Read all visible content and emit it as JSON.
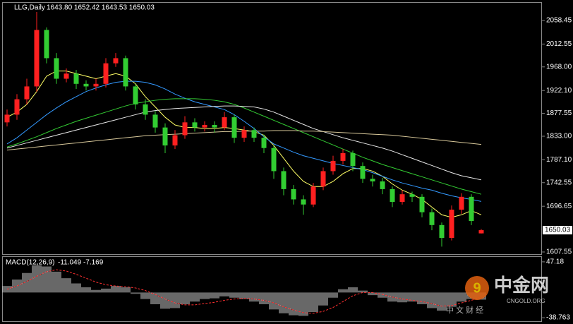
{
  "chart_data": [
    {
      "type": "candlestick",
      "title": "LLG,Daily",
      "subtitle": "1643.80 1652.42 1643.53 1650.03",
      "up_color": "#ff2020",
      "down_color": "#32cd32",
      "open": [
        1860,
        1875,
        1905,
        1930,
        2040,
        1985,
        1945,
        1955,
        1935,
        1930,
        1935,
        1975,
        1985,
        1930,
        1895,
        1875,
        1850,
        1815,
        1835,
        1860,
        1850,
        1855,
        1850,
        1870,
        1830,
        1845,
        1830,
        1810,
        1765,
        1730,
        1710,
        1700,
        1735,
        1765,
        1785,
        1800,
        1775,
        1750,
        1745,
        1730,
        1705,
        1720,
        1715,
        1685,
        1660,
        1635,
        1690,
        1715,
        1643.8
      ],
      "high": [
        1885,
        1915,
        1945,
        2075,
        2045,
        1995,
        1965,
        1962,
        1942,
        1945,
        1985,
        1995,
        1990,
        1935,
        1905,
        1882,
        1858,
        1845,
        1872,
        1868,
        1862,
        1862,
        1880,
        1875,
        1852,
        1850,
        1836,
        1815,
        1772,
        1738,
        1718,
        1742,
        1772,
        1795,
        1808,
        1805,
        1782,
        1758,
        1752,
        1735,
        1728,
        1725,
        1720,
        1692,
        1665,
        1698,
        1722,
        1720,
        1652.42
      ],
      "low": [
        1852,
        1865,
        1895,
        1920,
        1975,
        1935,
        1938,
        1925,
        1922,
        1922,
        1928,
        1968,
        1922,
        1885,
        1865,
        1840,
        1800,
        1808,
        1828,
        1842,
        1842,
        1840,
        1845,
        1820,
        1822,
        1822,
        1800,
        1750,
        1718,
        1700,
        1680,
        1695,
        1728,
        1758,
        1778,
        1765,
        1742,
        1735,
        1720,
        1695,
        1700,
        1705,
        1675,
        1650,
        1618,
        1630,
        1682,
        1660,
        1643.53
      ],
      "close": [
        1875,
        1905,
        1930,
        2040,
        1985,
        1945,
        1955,
        1935,
        1930,
        1935,
        1975,
        1985,
        1930,
        1895,
        1875,
        1850,
        1815,
        1835,
        1860,
        1850,
        1855,
        1850,
        1870,
        1830,
        1845,
        1830,
        1810,
        1765,
        1730,
        1710,
        1700,
        1735,
        1765,
        1785,
        1800,
        1775,
        1750,
        1745,
        1730,
        1705,
        1720,
        1715,
        1685,
        1660,
        1635,
        1690,
        1715,
        1668,
        1650.03
      ],
      "series": [
        {
          "color": "#ffff66",
          "values": [
            1870,
            1880,
            1895,
            1920,
            1950,
            1960,
            1960,
            1955,
            1950,
            1945,
            1950,
            1955,
            1950,
            1935,
            1910,
            1890,
            1870,
            1855,
            1850,
            1850,
            1848,
            1848,
            1850,
            1848,
            1845,
            1842,
            1835,
            1815,
            1790,
            1765,
            1745,
            1735,
            1735,
            1745,
            1760,
            1770,
            1770,
            1765,
            1755,
            1740,
            1728,
            1720,
            1710,
            1695,
            1680,
            1675,
            1680,
            1688,
            1680
          ]
        },
        {
          "color": "#3399ff",
          "values": [
            1818,
            1830,
            1845,
            1860,
            1875,
            1888,
            1900,
            1910,
            1920,
            1927,
            1933,
            1938,
            1940,
            1940,
            1938,
            1933,
            1925,
            1915,
            1907,
            1900,
            1895,
            1890,
            1885,
            1875,
            1862,
            1848,
            1832,
            1818,
            1810,
            1802,
            1795,
            1790,
            1785,
            1780,
            1776,
            1772,
            1768,
            1762,
            1755,
            1748,
            1742,
            1737,
            1732,
            1728,
            1722,
            1717,
            1713,
            1710,
            1706
          ]
        },
        {
          "color": "#33cc33",
          "values": [
            1812,
            1818,
            1825,
            1832,
            1840,
            1848,
            1855,
            1862,
            1868,
            1874,
            1880,
            1886,
            1892,
            1897,
            1900,
            1903,
            1905,
            1906,
            1906,
            1906,
            1905,
            1903,
            1900,
            1895,
            1888,
            1880,
            1872,
            1864,
            1856,
            1848,
            1840,
            1832,
            1824,
            1816,
            1808,
            1800,
            1792,
            1785,
            1778,
            1772,
            1766,
            1760,
            1754,
            1748,
            1742,
            1736,
            1730,
            1725,
            1720
          ]
        },
        {
          "color": "#e8e8e8",
          "values": [
            1810,
            1815,
            1820,
            1825,
            1830,
            1835,
            1840,
            1845,
            1850,
            1855,
            1860,
            1865,
            1870,
            1875,
            1880,
            1883,
            1885,
            1887,
            1888,
            1889,
            1890,
            1891,
            1892,
            1892,
            1891,
            1890,
            1886,
            1880,
            1872,
            1864,
            1856,
            1848,
            1842,
            1836,
            1830,
            1825,
            1820,
            1815,
            1810,
            1804,
            1797,
            1790,
            1783,
            1776,
            1769,
            1762,
            1756,
            1752,
            1748
          ]
        },
        {
          "color": "#d8c89a",
          "values": [
            1806,
            1808,
            1810,
            1812,
            1814,
            1816,
            1818,
            1820,
            1822,
            1824,
            1826,
            1828,
            1830,
            1832,
            1834,
            1835,
            1836,
            1837,
            1838,
            1839,
            1840,
            1841,
            1842,
            1842,
            1843,
            1843,
            1843,
            1844,
            1844,
            1844,
            1843,
            1843,
            1842,
            1841,
            1840,
            1839,
            1838,
            1837,
            1836,
            1835,
            1833,
            1831,
            1829,
            1827,
            1825,
            1823,
            1821,
            1819,
            1817
          ]
        }
      ],
      "ylim": [
        1603.4,
        2092.8
      ],
      "yticks": [
        2058.45,
        2012.55,
        {
          "value": 1968.0,
          "label": "1968.00"
        },
        {
          "value": 1922.1,
          "label": "1922.10"
        },
        1877.55,
        {
          "value": 1833.0,
          "label": "1833.00"
        },
        {
          "value": 1787.1,
          "label": "1787.10"
        },
        1742.55,
        1696.65,
        1607.55
      ]
    },
    {
      "type": "macd",
      "title": "MACD(12,26,9)",
      "subtitle": "-11.049 -7.169",
      "histogram": {
        "color": "#d0d0d0",
        "values": [
          10,
          20,
          30,
          42,
          40,
          32,
          22,
          14,
          8,
          4,
          6,
          10,
          8,
          -2,
          -10,
          -18,
          -25,
          -24,
          -18,
          -14,
          -10,
          -9,
          -6,
          -8,
          -10,
          -14,
          -18,
          -26,
          -32,
          -35,
          -36,
          -30,
          -20,
          -8,
          5,
          8,
          3,
          -4,
          -8,
          -14,
          -15,
          -14,
          -18,
          -24,
          -28,
          -22,
          -14,
          -10,
          -11.049
        ]
      },
      "signal": {
        "color": "#ff3030",
        "values": [
          5,
          10,
          17,
          25,
          32,
          35,
          33,
          28,
          22,
          16,
          12,
          10,
          9,
          7,
          3,
          -3,
          -10,
          -16,
          -19,
          -19,
          -17,
          -15,
          -12,
          -10,
          -9,
          -10,
          -12,
          -16,
          -22,
          -27,
          -31,
          -32,
          -29,
          -23,
          -14,
          -5,
          0,
          0,
          -3,
          -7,
          -10,
          -12,
          -14,
          -17,
          -21,
          -20,
          -16,
          -12,
          -7.169
        ]
      },
      "ylim": [
        -44.1,
        54.7
      ],
      "yticks": [
        47.18,
        -38.763
      ]
    }
  ],
  "watermark": {
    "brand": "中金网",
    "site": "CNGOLD.ORG",
    "sub": "中 文 财 经"
  }
}
